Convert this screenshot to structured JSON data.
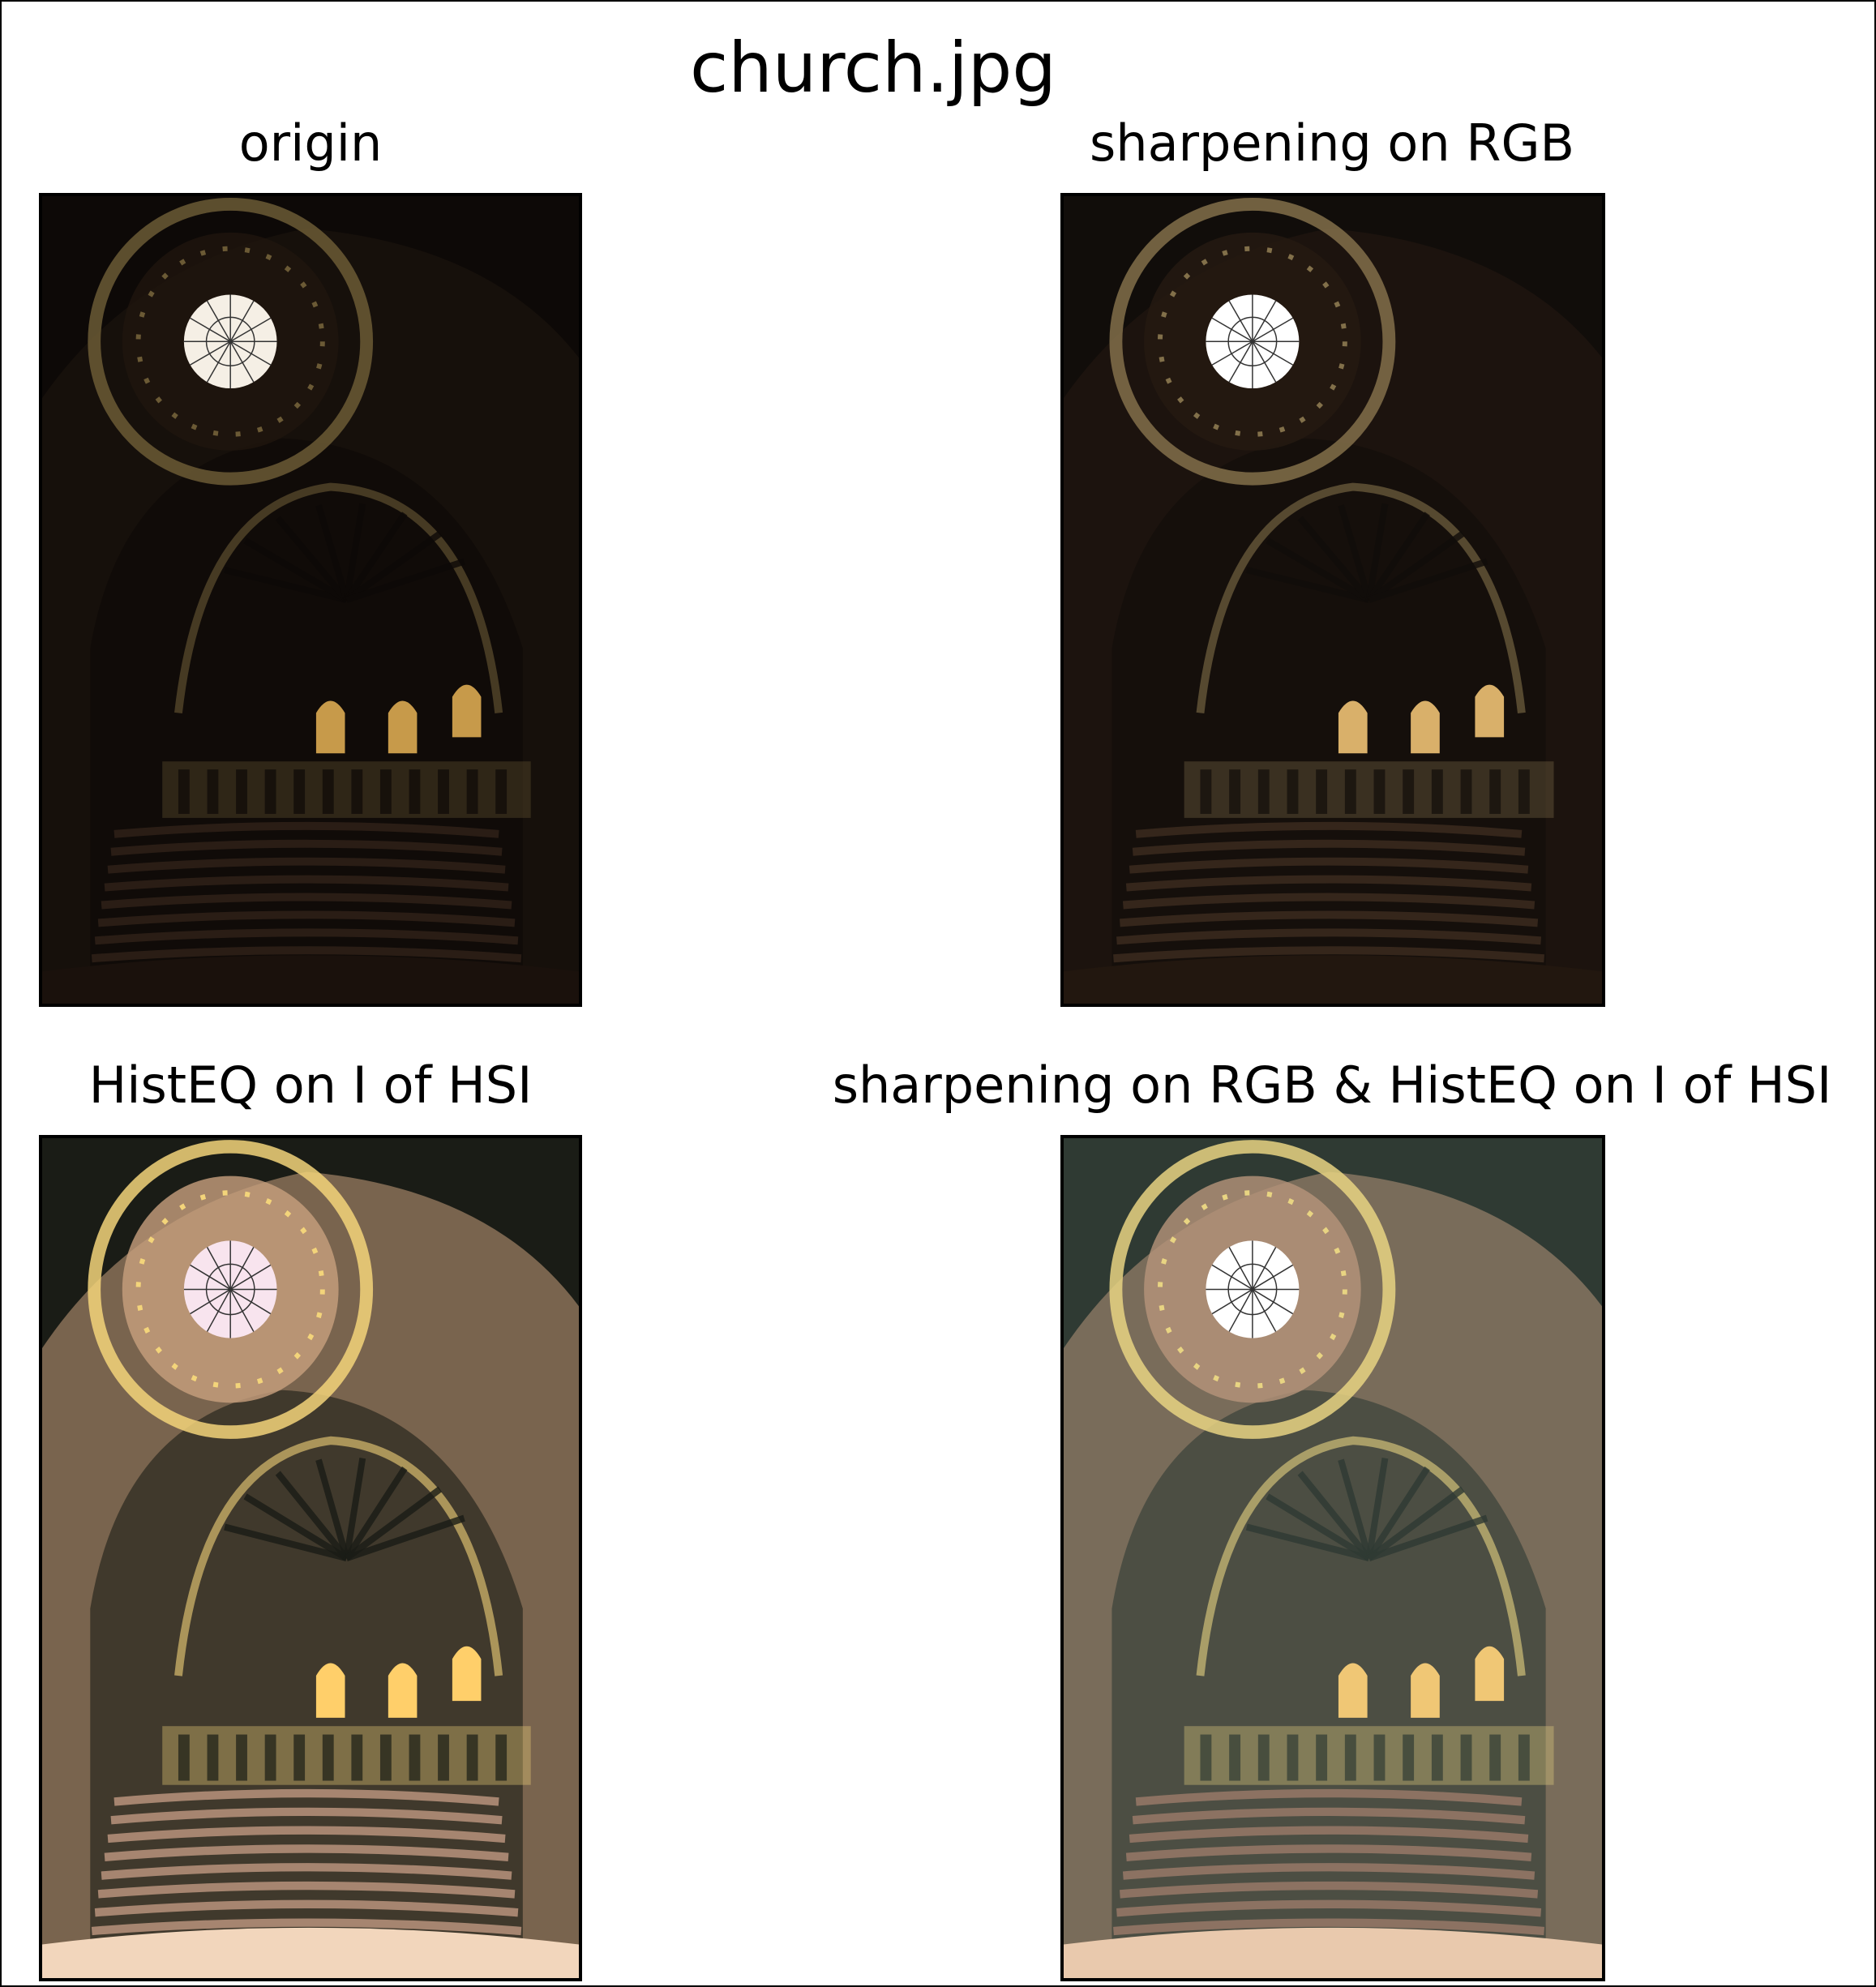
{
  "figure": {
    "suptitle": "church.jpg"
  },
  "panels": [
    {
      "title": "origin",
      "variant": "dark",
      "colors": {
        "bg": "#0d0907",
        "wall": "#1f150e",
        "gold": "#6b5a35",
        "window": "#f5efe5",
        "floor": "#1a110c",
        "stair": "#2a1d15",
        "glass": "#c79a4a"
      }
    },
    {
      "title": "sharpening on RGB",
      "variant": "dark-sharp",
      "colors": {
        "bg": "#110d0a",
        "wall": "#261a12",
        "gold": "#82704a",
        "window": "#ffffff",
        "floor": "#22170f",
        "stair": "#35261b",
        "glass": "#d9b06a"
      }
    },
    {
      "title": "HistEQ on I of HSI",
      "variant": "bright",
      "colors": {
        "bg": "#1a1c16",
        "wall": "#c8a07e",
        "gold": "#f3d47a",
        "window": "#f8e4ee",
        "floor": "#f2d6bc",
        "stair": "#a68570",
        "glass": "#ffcf6a"
      }
    },
    {
      "title": "sharpening on RGB & HistEQ on I of HSI",
      "variant": "bright-sharp",
      "colors": {
        "bg": "#2f3a33",
        "wall": "#b6957a",
        "gold": "#e8d482",
        "window": "#ffffff",
        "floor": "#e9c9ad",
        "stair": "#8c7262",
        "glass": "#f0c775"
      }
    }
  ]
}
